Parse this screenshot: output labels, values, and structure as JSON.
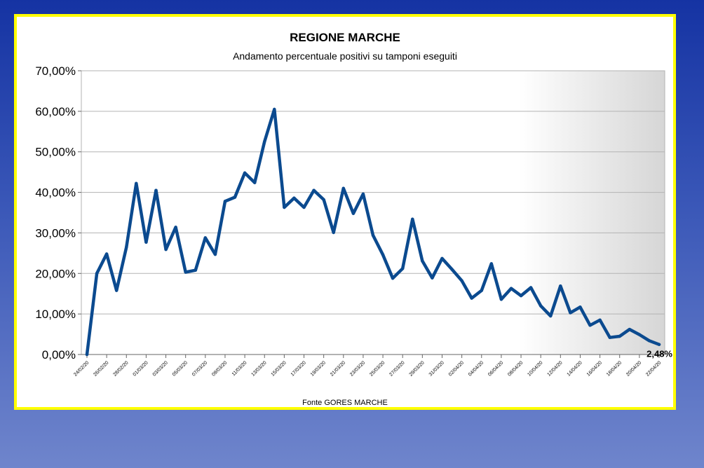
{
  "colors": {
    "background_top": "#1533a3",
    "background_bottom": "#6f85cc",
    "frame_border": "#ffff00",
    "line": "#0b4a8f",
    "grid": "#b3b3b3"
  },
  "chart_data": {
    "type": "line",
    "title": "REGIONE MARCHE",
    "subtitle": "Andamento percentuale positivi su tamponi eseguiti",
    "source": "Fonte GORES MARCHE",
    "ylim": [
      0,
      70
    ],
    "y_ticks": [
      "0,00%",
      "10,00%",
      "20,00%",
      "30,00%",
      "40,00%",
      "50,00%",
      "60,00%",
      "70,00%"
    ],
    "grid": true,
    "legend": "none",
    "x_tick_labels": [
      "24/02/20",
      "26/02/20",
      "28/02/20",
      "01/03/20",
      "03/03/20",
      "05/03/20",
      "07/03/20",
      "09/03/20",
      "11/03/20",
      "13/03/20",
      "15/03/20",
      "17/03/20",
      "19/03/20",
      "21/03/20",
      "23/03/20",
      "25/03/20",
      "27/03/20",
      "29/03/20",
      "31/03/20",
      "02/04/20",
      "04/04/20",
      "06/04/20",
      "08/04/20",
      "10/04/20",
      "12/04/20",
      "14/04/20",
      "16/04/20",
      "18/04/20",
      "20/04/20",
      "22/04/20"
    ],
    "series": [
      {
        "values": [
          0.0,
          20.0,
          24.8,
          15.8,
          26.5,
          42.2,
          27.7,
          40.5,
          25.9,
          31.4,
          20.3,
          20.8,
          28.8,
          24.7,
          37.8,
          38.8,
          44.8,
          42.4,
          52.5,
          60.5,
          36.3,
          38.6,
          36.3,
          40.5,
          38.2,
          30.1,
          41.0,
          34.8,
          39.6,
          29.4,
          24.6,
          18.8,
          21.2,
          33.4,
          23.1,
          18.9,
          23.7,
          21.0,
          18.2,
          13.9,
          15.8,
          22.4,
          13.6,
          16.3,
          14.5,
          16.5,
          12.0,
          9.5,
          16.9,
          10.3,
          11.7,
          7.2,
          8.5,
          4.2,
          4.5,
          6.2,
          4.9,
          3.4,
          2.48
        ]
      }
    ],
    "annotations": [
      {
        "text": "2,48%",
        "x": "22/04/20",
        "y": 2.48
      }
    ]
  }
}
